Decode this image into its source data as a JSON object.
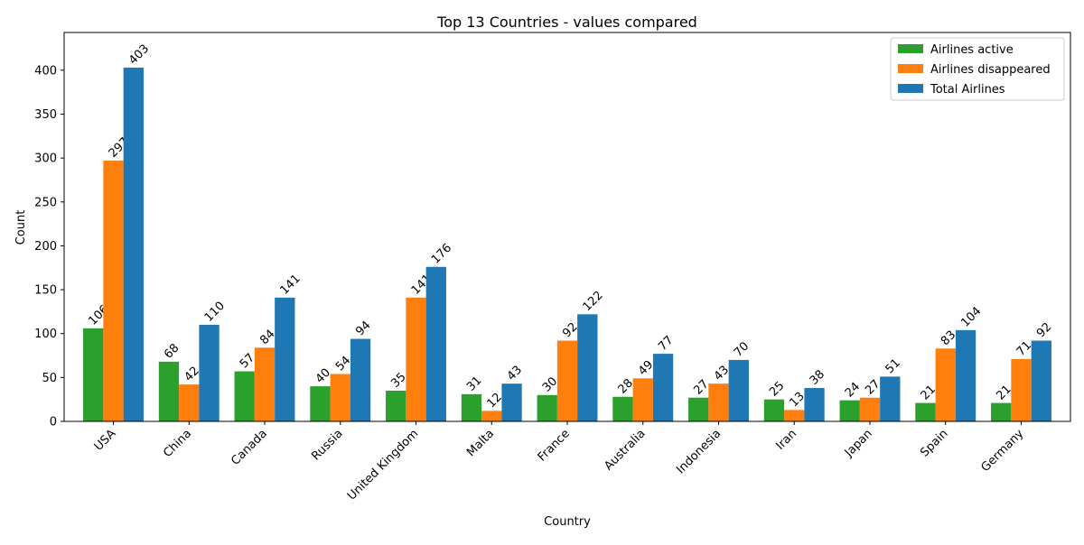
{
  "chart_data": {
    "type": "bar",
    "title": "Top 13 Countries - values compared",
    "xlabel": "Country",
    "ylabel": "Count",
    "ylim": [
      0,
      443
    ],
    "yticks": [
      0,
      50,
      100,
      150,
      200,
      250,
      300,
      350,
      400
    ],
    "grid": false,
    "legend_position": "top-right",
    "categories": [
      "USA",
      "China",
      "Canada",
      "Russia",
      "United Kingdom",
      "Malta",
      "France",
      "Australia",
      "Indonesia",
      "Iran",
      "Japan",
      "Spain",
      "Germany"
    ],
    "series": [
      {
        "name": "Airlines active",
        "color": "#2ca02c",
        "values": [
          106,
          68,
          57,
          40,
          35,
          31,
          30,
          28,
          27,
          25,
          24,
          21,
          21
        ]
      },
      {
        "name": "Airlines disappeared",
        "color": "#ff7f0e",
        "values": [
          297,
          42,
          84,
          54,
          141,
          12,
          92,
          49,
          43,
          13,
          27,
          83,
          71
        ]
      },
      {
        "name": "Total Airlines",
        "color": "#1f77b4",
        "values": [
          403,
          110,
          141,
          94,
          176,
          43,
          122,
          77,
          70,
          38,
          51,
          104,
          92
        ]
      }
    ]
  }
}
